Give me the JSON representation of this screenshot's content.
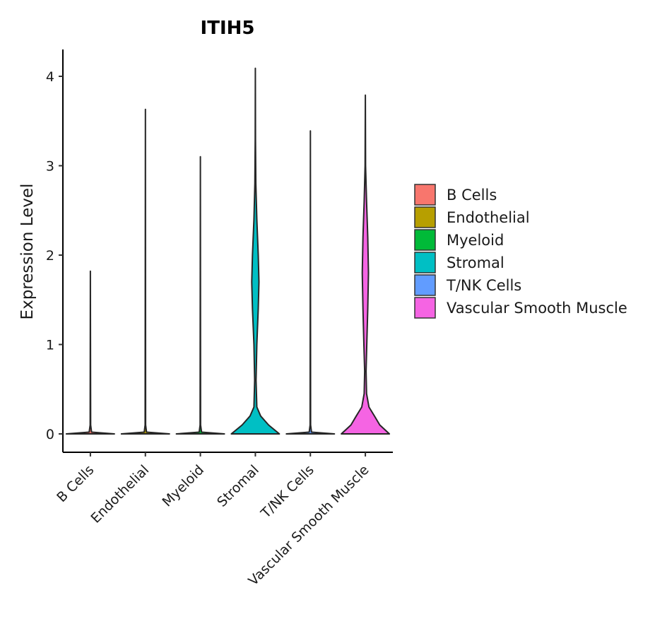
{
  "chart_data": {
    "type": "violin",
    "title": "ITIH5",
    "xlabel": "",
    "ylabel": "Expression Level",
    "ylim": [
      -0.2,
      4.3
    ],
    "yticks": [
      0,
      1,
      2,
      3,
      4
    ],
    "grid": false,
    "legend_position": "right",
    "categories": [
      "B Cells",
      "Endothelial",
      "Myeloid",
      "Stromal",
      "T/NK Cells",
      "Vascular Smooth Muscle"
    ],
    "colors": [
      "#F8766D",
      "#B79F00",
      "#00BA38",
      "#00BFC4",
      "#619CFF",
      "#F564E3"
    ],
    "series": [
      {
        "name": "B Cells",
        "max": 1.82,
        "profile": [
          [
            0.0,
            1.0
          ],
          [
            0.02,
            0.05
          ],
          [
            0.1,
            0.01
          ],
          [
            1.82,
            0.0
          ]
        ]
      },
      {
        "name": "Endothelial",
        "max": 3.63,
        "profile": [
          [
            0.0,
            1.0
          ],
          [
            0.02,
            0.05
          ],
          [
            0.1,
            0.01
          ],
          [
            3.63,
            0.0
          ]
        ]
      },
      {
        "name": "Myeloid",
        "max": 3.1,
        "profile": [
          [
            0.0,
            1.0
          ],
          [
            0.02,
            0.05
          ],
          [
            0.1,
            0.01
          ],
          [
            3.1,
            0.0
          ]
        ]
      },
      {
        "name": "Stromal",
        "max": 4.09,
        "profile": [
          [
            0.0,
            1.0
          ],
          [
            0.1,
            0.55
          ],
          [
            0.2,
            0.22
          ],
          [
            0.3,
            0.06
          ],
          [
            0.6,
            0.03
          ],
          [
            1.0,
            0.06
          ],
          [
            1.4,
            0.12
          ],
          [
            1.7,
            0.15
          ],
          [
            2.0,
            0.12
          ],
          [
            2.4,
            0.06
          ],
          [
            2.8,
            0.02
          ],
          [
            3.3,
            0.005
          ],
          [
            4.09,
            0.0
          ]
        ]
      },
      {
        "name": "T/NK Cells",
        "max": 3.39,
        "profile": [
          [
            0.0,
            1.0
          ],
          [
            0.02,
            0.05
          ],
          [
            0.1,
            0.01
          ],
          [
            3.39,
            0.0
          ]
        ]
      },
      {
        "name": "Vascular Smooth Muscle",
        "max": 3.79,
        "profile": [
          [
            0.0,
            1.0
          ],
          [
            0.1,
            0.6
          ],
          [
            0.2,
            0.38
          ],
          [
            0.3,
            0.15
          ],
          [
            0.45,
            0.05
          ],
          [
            0.7,
            0.03
          ],
          [
            1.0,
            0.06
          ],
          [
            1.4,
            0.1
          ],
          [
            1.8,
            0.13
          ],
          [
            2.2,
            0.1
          ],
          [
            2.6,
            0.05
          ],
          [
            3.0,
            0.01
          ],
          [
            3.79,
            0.0
          ]
        ]
      }
    ]
  }
}
